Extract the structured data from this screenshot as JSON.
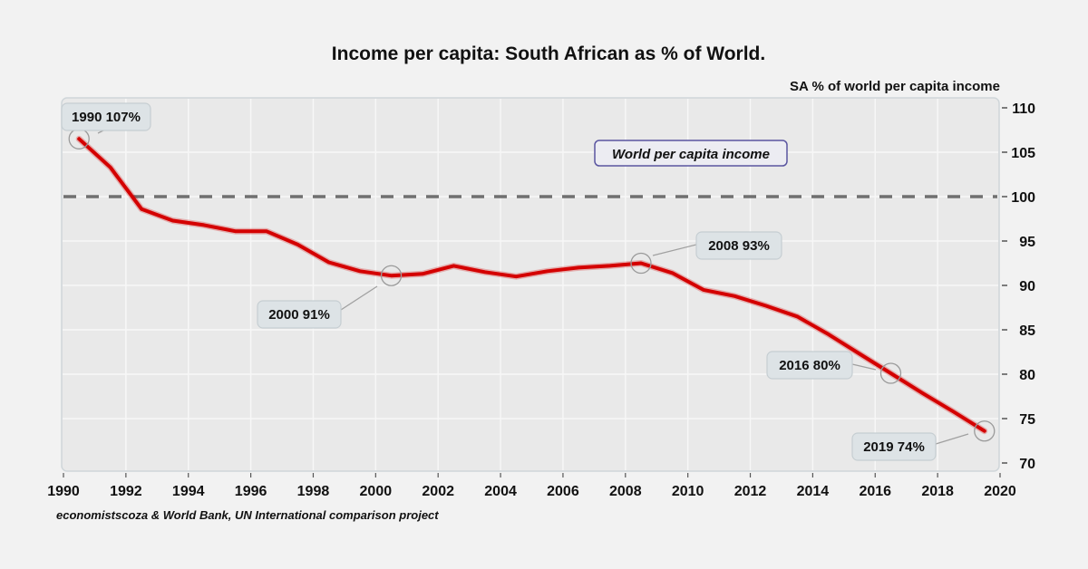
{
  "chart_data": {
    "type": "line",
    "title": "Income per capita: South African as % of World.",
    "xlabel": "",
    "ylabel": "SA % of world per capita income",
    "source": "economistscoza & World Bank, UN International comparison project",
    "xlim": [
      1990,
      2020
    ],
    "ylim": [
      70,
      110
    ],
    "x_ticks": [
      "1990",
      "1992",
      "1994",
      "1996",
      "1998",
      "2000",
      "2002",
      "2004",
      "2006",
      "2008",
      "2010",
      "2012",
      "2014",
      "2016",
      "2018",
      "2020"
    ],
    "y_ticks": [
      "110",
      "105",
      "100",
      "95",
      "90",
      "85",
      "80",
      "75",
      "70"
    ],
    "y_axis_side": "right",
    "grid": true,
    "series": [
      {
        "name": "SA % of world per capita income",
        "color": "#d40000",
        "x": [
          1990.5,
          1991.5,
          1992.5,
          1993.5,
          1994.5,
          1995.5,
          1996.5,
          1997.5,
          1998.5,
          1999.5,
          2000.5,
          2001.5,
          2002.5,
          2003.5,
          2004.5,
          2005.5,
          2006.5,
          2007.5,
          2008.5,
          2009.5,
          2010.5,
          2011.5,
          2012.5,
          2013.5,
          2014.5,
          2015.5,
          2016.5,
          2017.5,
          2018.5,
          2019.5
        ],
        "values": [
          106.5,
          103.3,
          98.6,
          97.3,
          96.8,
          96.1,
          96.1,
          94.6,
          92.6,
          91.6,
          91.1,
          91.3,
          92.2,
          91.5,
          91.0,
          91.6,
          92.0,
          92.2,
          92.5,
          91.4,
          89.5,
          88.8,
          87.7,
          86.5,
          84.5,
          82.3,
          80.1,
          77.9,
          75.8,
          73.6
        ]
      }
    ],
    "reference_line": {
      "name": "World per capita income",
      "value": 100,
      "style": "dashed",
      "color": "#707070",
      "label": "World per capita income",
      "label_border_color": "#5a55a0"
    },
    "annotations": [
      {
        "text": "1990 107%",
        "x": 1990.5,
        "y": 106.5
      },
      {
        "text": "2000 91%",
        "x": 2000.5,
        "y": 91.1
      },
      {
        "text": "2008 93%",
        "x": 2008.5,
        "y": 92.5
      },
      {
        "text": "2016 80%",
        "x": 2016.5,
        "y": 80.1
      },
      {
        "text": "2019 74%",
        "x": 2019.5,
        "y": 73.6
      }
    ]
  }
}
